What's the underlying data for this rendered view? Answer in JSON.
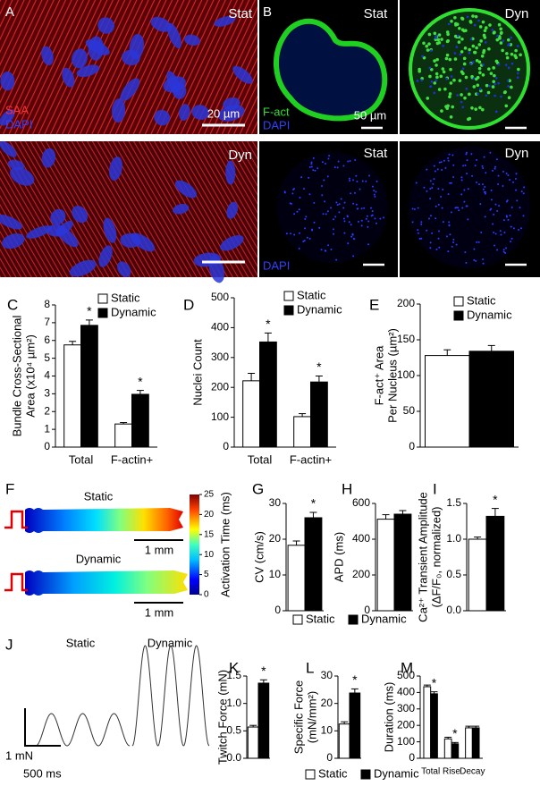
{
  "image_panels": [
    {
      "panel": "A",
      "tiles": [
        {
          "label": "Stat",
          "stains": [
            "SAA",
            "DAPI"
          ],
          "scale_bar": "20 µm"
        },
        {
          "label": "Dyn"
        }
      ]
    },
    {
      "panel": "B",
      "tiles": [
        {
          "label": "Stat",
          "stains": [
            "F-act",
            "DAPI"
          ],
          "scale_bar": "50 µm"
        },
        {
          "label": "Dyn"
        },
        {
          "label": "Stat",
          "stains": [
            "DAPI"
          ]
        },
        {
          "label": "Dyn"
        }
      ]
    }
  ],
  "activation_map": {
    "panel": "F",
    "conditions": [
      "Static",
      "Dynamic"
    ],
    "scale_bar": "1 mm",
    "colorbar": {
      "label": "Activation Time (ms)",
      "lim": [
        0,
        25
      ],
      "ticks": [
        0,
        5,
        10,
        15,
        20,
        25
      ]
    }
  },
  "twitch_traces": {
    "panel": "J",
    "conditions": [
      "Static",
      "Dynamic"
    ],
    "scale_y": "1 mN",
    "scale_x": "500 ms"
  },
  "chart_data": [
    {
      "type": "bar",
      "panel": "C",
      "ylabel": [
        "Bundle Cross-Sectional",
        "Area (x10⁴ µm²)"
      ],
      "categories": [
        "Total",
        "F-actin+"
      ],
      "series": [
        {
          "name": "Static",
          "color": "#ffffff",
          "values": [
            5.75,
            1.3
          ],
          "errors": [
            0.2,
            0.08
          ]
        },
        {
          "name": "Dynamic",
          "color": "#000000",
          "values": [
            6.85,
            2.97
          ],
          "errors": [
            0.3,
            0.22
          ],
          "significance": [
            "*",
            "*"
          ]
        }
      ],
      "ylim": [
        0,
        8
      ],
      "yticks": [
        0,
        1,
        2,
        3,
        4,
        5,
        6,
        7,
        8
      ],
      "legend": "upper right"
    },
    {
      "type": "bar",
      "panel": "D",
      "ylabel": [
        "Nuclei Count"
      ],
      "categories": [
        "Total",
        "F-actin+"
      ],
      "series": [
        {
          "name": "Static",
          "color": "#ffffff",
          "values": [
            222,
            102
          ],
          "errors": [
            25,
            10
          ]
        },
        {
          "name": "Dynamic",
          "color": "#000000",
          "values": [
            352,
            218
          ],
          "errors": [
            30,
            20
          ],
          "significance": [
            "*",
            "*"
          ]
        }
      ],
      "ylim": [
        0,
        500
      ],
      "yticks": [
        0,
        100,
        200,
        300,
        400,
        500
      ],
      "legend": "upper right"
    },
    {
      "type": "bar",
      "panel": "E",
      "ylabel": [
        "F-act⁺ Area",
        "Per Nucleus (µm²)"
      ],
      "series": [
        {
          "name": "Static",
          "color": "#ffffff",
          "values": [
            128
          ],
          "errors": [
            8
          ]
        },
        {
          "name": "Dynamic",
          "color": "#000000",
          "values": [
            134
          ],
          "errors": [
            8
          ]
        }
      ],
      "ylim": [
        0,
        200
      ],
      "yticks": [
        0,
        50,
        100,
        150,
        200
      ],
      "legend": "upper right"
    },
    {
      "type": "bar",
      "panel": "G",
      "ylabel": [
        "CV (cm/s)"
      ],
      "series": [
        {
          "color": "#ffffff",
          "values": [
            18.3
          ],
          "errors": [
            1.2
          ]
        },
        {
          "color": "#000000",
          "values": [
            26
          ],
          "errors": [
            1.5
          ],
          "significance": [
            "*"
          ]
        }
      ],
      "ylim": [
        0,
        30
      ],
      "yticks": [
        0,
        10,
        20,
        30
      ]
    },
    {
      "type": "bar",
      "panel": "H",
      "ylabel": [
        "APD (ms)"
      ],
      "series": [
        {
          "name": "Static",
          "color": "#ffffff",
          "values": [
            512
          ],
          "errors": [
            25
          ]
        },
        {
          "name": "Dynamic",
          "color": "#000000",
          "values": [
            540
          ],
          "errors": [
            20
          ]
        }
      ],
      "ylim": [
        0,
        600
      ],
      "yticks": [
        0,
        200,
        400,
        600
      ],
      "legend": "below"
    },
    {
      "type": "bar",
      "panel": "I",
      "ylabel": [
        "Ca²⁺ Transient Amplitude",
        "(ΔF/F₀, normalized)"
      ],
      "series": [
        {
          "color": "#ffffff",
          "values": [
            1.0
          ],
          "errors": [
            0.03
          ]
        },
        {
          "color": "#000000",
          "values": [
            1.32
          ],
          "errors": [
            0.11
          ],
          "significance": [
            "*"
          ]
        }
      ],
      "ylim": [
        0,
        1.5
      ],
      "yticks": [
        {
          "value": 0,
          "label": "0.0"
        },
        0.5,
        {
          "value": 1,
          "label": "1.0"
        },
        1.5
      ]
    },
    {
      "type": "bar",
      "panel": "K",
      "ylabel": [
        "Twitch Force (mN)"
      ],
      "series": [
        {
          "color": "#ffffff",
          "values": [
            0.57
          ],
          "errors": [
            0.03
          ]
        },
        {
          "color": "#000000",
          "values": [
            1.37
          ],
          "errors": [
            0.06
          ],
          "significance": [
            "*"
          ]
        }
      ],
      "ylim": [
        0,
        1.5
      ],
      "yticks": [
        {
          "value": 0,
          "label": "0.0"
        },
        0.5,
        {
          "value": 1,
          "label": "1.0"
        },
        1.5
      ]
    },
    {
      "type": "bar",
      "panel": "L",
      "ylabel": [
        "Specific Force",
        "(mN/mm²)"
      ],
      "series": [
        {
          "name": "Static",
          "color": "#ffffff",
          "values": [
            12.5
          ],
          "errors": [
            0.8
          ]
        },
        {
          "name": "Dynamic",
          "color": "#000000",
          "values": [
            23.8
          ],
          "errors": [
            1.5
          ],
          "significance": [
            "*"
          ]
        }
      ],
      "ylim": [
        0,
        30
      ],
      "yticks": [
        0,
        10,
        20,
        30
      ],
      "legend": "below"
    },
    {
      "type": "bar",
      "panel": "M",
      "ylabel": [
        "Duration (ms)"
      ],
      "categories": [
        "Total",
        "Rise",
        "Decay"
      ],
      "series": [
        {
          "color": "#ffffff",
          "values": [
            435,
            118,
            185
          ],
          "errors": [
            10,
            10,
            10
          ]
        },
        {
          "color": "#000000",
          "values": [
            392,
            88,
            185
          ],
          "errors": [
            12,
            8,
            10
          ],
          "significance": [
            "*",
            "*",
            null
          ]
        }
      ],
      "ylim": [
        0,
        500
      ],
      "yticks": [
        0,
        100,
        200,
        300,
        400,
        500
      ]
    }
  ]
}
